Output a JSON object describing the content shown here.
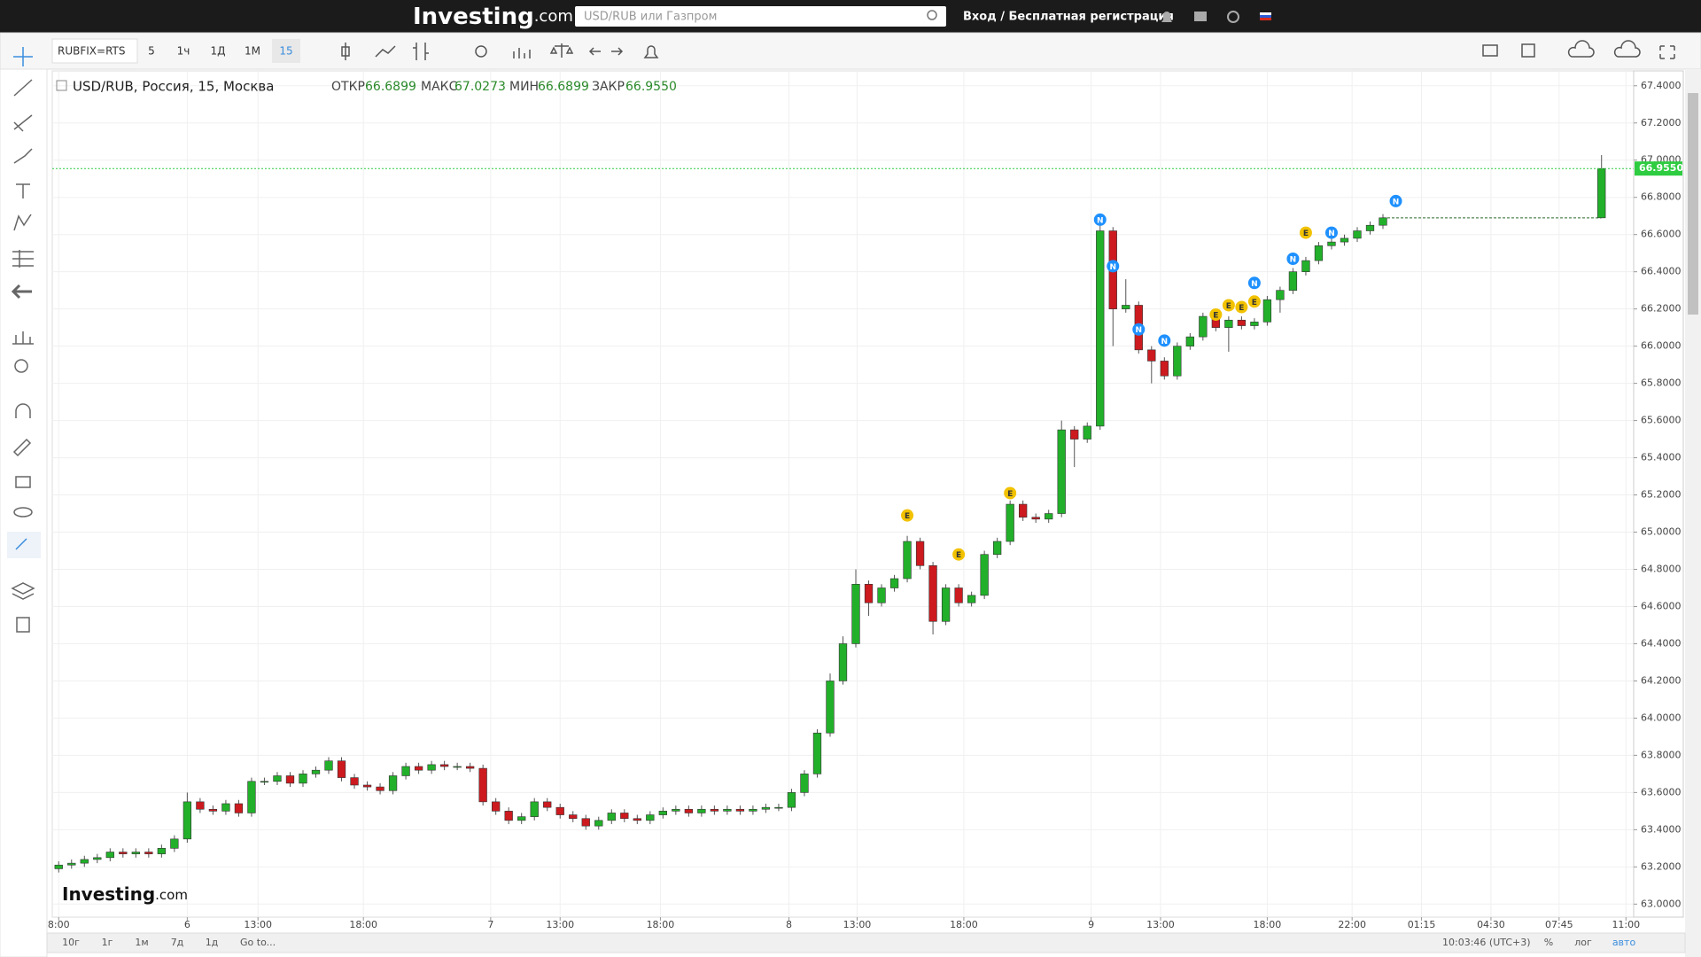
{
  "header": {
    "logo": "Investing",
    "logo_suffix": ".com",
    "search_placeholder": "USD/RUB или Газпром",
    "login": "Вход / Бесплатная регистрация"
  },
  "toolbar": {
    "symbol": "RUBFIX=RTS",
    "intervals": [
      "5",
      "1ч",
      "1Д",
      "1М",
      "15"
    ]
  },
  "legend": {
    "title": "USD/RUB, Россия, 15, Москва",
    "ohlc": [
      {
        "label": "ОТКР",
        "value": "66.6899"
      },
      {
        "label": "МАКС",
        "value": "67.0273"
      },
      {
        "label": "МИН",
        "value": "66.6899"
      },
      {
        "label": "ЗАКР",
        "value": "66.9550"
      }
    ]
  },
  "bottom_bar": {
    "ranges": [
      "10г",
      "1г",
      "1м",
      "7д",
      "1д"
    ],
    "goto": "Go to...",
    "clock": "10:03:46 (UTC+3)",
    "options": [
      "%",
      "лог",
      "авто"
    ]
  },
  "chart_data": {
    "type": "candlestick",
    "watermark": [
      "Investing",
      ".com"
    ],
    "up_color": "#22b02a",
    "down_color": "#cc1a1f",
    "xlim": [
      -0.5,
      122.5
    ],
    "ylim": [
      62.93,
      67.48
    ],
    "grid": true,
    "xticks": [
      {
        "value": 0,
        "label": "8:00"
      },
      {
        "value": 10,
        "label": "6"
      },
      {
        "value": 15.5,
        "label": "13:00"
      },
      {
        "value": 23.7,
        "label": "18:00"
      },
      {
        "value": 33.6,
        "label": "7"
      },
      {
        "value": 39,
        "label": "13:00"
      },
      {
        "value": 46.8,
        "label": "18:00"
      },
      {
        "value": 56.8,
        "label": "8"
      },
      {
        "value": 62.1,
        "label": "13:00"
      },
      {
        "value": 70.4,
        "label": "18:00"
      },
      {
        "value": 80.3,
        "label": "9"
      },
      {
        "value": 85.7,
        "label": "13:00"
      },
      {
        "value": 94,
        "label": "18:00"
      },
      {
        "value": 100.6,
        "label": "22:00"
      },
      {
        "value": 106,
        "label": "01:15"
      },
      {
        "value": 111.4,
        "label": "04:30"
      },
      {
        "value": 116.7,
        "label": "07:45"
      },
      {
        "value": 121.9,
        "label": "11:00"
      }
    ],
    "yticks": [
      {
        "value": 63.0,
        "label": "63.0000"
      },
      {
        "value": 63.2,
        "label": "63.2000"
      },
      {
        "value": 63.4,
        "label": "63.4000"
      },
      {
        "value": 63.6,
        "label": "63.6000"
      },
      {
        "value": 63.8,
        "label": "63.8000"
      },
      {
        "value": 64.0,
        "label": "64.0000"
      },
      {
        "value": 64.2,
        "label": "64.2000"
      },
      {
        "value": 64.4,
        "label": "64.4000"
      },
      {
        "value": 64.6,
        "label": "64.6000"
      },
      {
        "value": 64.8,
        "label": "64.8000"
      },
      {
        "value": 65.0,
        "label": "65.0000"
      },
      {
        "value": 65.2,
        "label": "65.2000"
      },
      {
        "value": 65.4,
        "label": "65.4000"
      },
      {
        "value": 65.6,
        "label": "65.6000"
      },
      {
        "value": 65.8,
        "label": "65.8000"
      },
      {
        "value": 66.0,
        "label": "66.0000"
      },
      {
        "value": 66.2,
        "label": "66.2000"
      },
      {
        "value": 66.4,
        "label": "66.4000"
      },
      {
        "value": 66.6,
        "label": "66.6000"
      },
      {
        "value": 66.8,
        "label": "66.8000"
      },
      {
        "value": 67.0,
        "label": "67.0000"
      },
      {
        "value": 67.2,
        "label": "67.2000"
      },
      {
        "value": 67.4,
        "label": "67.4000"
      }
    ],
    "last_price": {
      "value": 66.955,
      "label": "66.9550"
    },
    "x": [
      0,
      1,
      2,
      3,
      4,
      5,
      6,
      7,
      8,
      9,
      10,
      11,
      12,
      13,
      14,
      15,
      16,
      17,
      18,
      19,
      20,
      21,
      22,
      23,
      24,
      25,
      26,
      27,
      28,
      29,
      30,
      31,
      32,
      33,
      34,
      35,
      36,
      37,
      38,
      39,
      40,
      41,
      42,
      43,
      44,
      45,
      46,
      47,
      48,
      49,
      50,
      51,
      52,
      53,
      54,
      55,
      56,
      57,
      58,
      59,
      60,
      61,
      62,
      63,
      64,
      65,
      66,
      67,
      68,
      69,
      70,
      71,
      72,
      73,
      74,
      75,
      76,
      77,
      78,
      79,
      80,
      81,
      82,
      83,
      84,
      85,
      86,
      87,
      88,
      89,
      90,
      91,
      92,
      93,
      94,
      95,
      96,
      97,
      98,
      99,
      100,
      101,
      102,
      103,
      120
    ],
    "series": [
      {
        "open": [
          63.19,
          63.21,
          63.22,
          63.24,
          63.25,
          63.28,
          63.27,
          63.28,
          63.27,
          63.3,
          63.35,
          63.55,
          63.51,
          63.5,
          63.54,
          63.49,
          63.66,
          63.66,
          63.69,
          63.65,
          63.7,
          63.72,
          63.77,
          63.68,
          63.64,
          63.63,
          63.61,
          63.69,
          63.74,
          63.72,
          63.75,
          63.74,
          63.74,
          63.73,
          63.55,
          63.5,
          63.45,
          63.47,
          63.55,
          63.52,
          63.48,
          63.46,
          63.42,
          63.45,
          63.49,
          63.46,
          63.45,
          63.48,
          63.5,
          63.51,
          63.49,
          63.51,
          63.5,
          63.51,
          63.5,
          63.51,
          63.52,
          63.52,
          63.6,
          63.7,
          63.92,
          64.2,
          64.4,
          64.72,
          64.62,
          64.7,
          64.75,
          64.95,
          64.82,
          64.52,
          64.7,
          64.62,
          64.66,
          64.88,
          64.95,
          65.15,
          65.08,
          65.07,
          65.1,
          65.55,
          65.5,
          65.57,
          66.62,
          66.2,
          66.22,
          65.98,
          65.92,
          65.84,
          66.0,
          66.05,
          66.16,
          66.1,
          66.14,
          66.11,
          66.13,
          66.25,
          66.3,
          66.4,
          66.46,
          66.54,
          66.56,
          66.58,
          66.62,
          66.65,
          66.6899
        ],
        "high": [
          63.23,
          63.24,
          63.26,
          63.27,
          63.3,
          63.3,
          63.3,
          63.3,
          63.32,
          63.37,
          63.6,
          63.57,
          63.53,
          63.56,
          63.56,
          63.68,
          63.68,
          63.71,
          63.71,
          63.72,
          63.74,
          63.79,
          63.79,
          63.7,
          63.66,
          63.65,
          63.71,
          63.76,
          63.76,
          63.77,
          63.77,
          63.76,
          63.76,
          63.75,
          63.57,
          63.52,
          63.49,
          63.57,
          63.57,
          63.54,
          63.5,
          63.48,
          63.47,
          63.51,
          63.51,
          63.48,
          63.5,
          63.52,
          63.53,
          63.53,
          63.53,
          63.53,
          63.53,
          63.53,
          63.53,
          63.54,
          63.54,
          63.62,
          63.72,
          63.94,
          64.24,
          64.44,
          64.8,
          64.74,
          64.72,
          64.77,
          64.98,
          64.97,
          64.84,
          64.72,
          64.72,
          64.68,
          64.9,
          64.97,
          65.17,
          65.17,
          65.1,
          65.12,
          65.6,
          65.57,
          65.59,
          66.66,
          66.64,
          66.36,
          66.24,
          66.0,
          65.94,
          66.02,
          66.07,
          66.18,
          66.18,
          66.16,
          66.16,
          66.15,
          66.27,
          66.32,
          66.42,
          66.48,
          66.56,
          66.58,
          66.6,
          66.64,
          66.67,
          66.71,
          67.0273
        ],
        "low": [
          63.17,
          63.19,
          63.2,
          63.22,
          63.23,
          63.25,
          63.25,
          63.25,
          63.25,
          63.28,
          63.33,
          63.49,
          63.48,
          63.48,
          63.47,
          63.47,
          63.64,
          63.64,
          63.63,
          63.63,
          63.68,
          63.7,
          63.66,
          63.62,
          63.61,
          63.59,
          63.59,
          63.67,
          63.7,
          63.7,
          63.72,
          63.72,
          63.71,
          63.53,
          63.48,
          63.43,
          63.43,
          63.45,
          63.5,
          63.46,
          63.44,
          63.4,
          63.4,
          63.43,
          63.44,
          63.43,
          63.43,
          63.46,
          63.48,
          63.47,
          63.47,
          63.48,
          63.48,
          63.48,
          63.48,
          63.49,
          63.5,
          63.5,
          63.58,
          63.68,
          63.9,
          64.18,
          64.38,
          64.55,
          64.6,
          64.68,
          64.73,
          64.8,
          64.45,
          64.5,
          64.6,
          64.6,
          64.64,
          64.86,
          64.93,
          65.06,
          65.05,
          65.05,
          65.08,
          65.35,
          65.48,
          65.55,
          66.0,
          66.18,
          65.96,
          65.8,
          65.82,
          65.82,
          65.98,
          66.03,
          66.08,
          65.97,
          66.09,
          66.09,
          66.11,
          66.18,
          66.28,
          66.38,
          66.44,
          66.52,
          66.54,
          66.56,
          66.6,
          66.63,
          66.6899
        ],
        "close": [
          63.21,
          63.22,
          63.24,
          63.25,
          63.28,
          63.27,
          63.28,
          63.27,
          63.3,
          63.35,
          63.55,
          63.51,
          63.5,
          63.54,
          63.49,
          63.66,
          63.66,
          63.69,
          63.65,
          63.7,
          63.72,
          63.77,
          63.68,
          63.64,
          63.63,
          63.61,
          63.69,
          63.74,
          63.72,
          63.75,
          63.74,
          63.74,
          63.73,
          63.55,
          63.5,
          63.45,
          63.47,
          63.55,
          63.52,
          63.48,
          63.46,
          63.42,
          63.45,
          63.49,
          63.46,
          63.45,
          63.48,
          63.5,
          63.51,
          63.49,
          63.51,
          63.5,
          63.51,
          63.5,
          63.51,
          63.52,
          63.52,
          63.6,
          63.7,
          63.92,
          64.2,
          64.4,
          64.72,
          64.62,
          64.7,
          64.75,
          64.95,
          64.82,
          64.52,
          64.7,
          64.62,
          64.66,
          64.88,
          64.95,
          65.15,
          65.08,
          65.07,
          65.1,
          65.55,
          65.5,
          65.57,
          66.62,
          66.2,
          66.22,
          65.98,
          65.92,
          65.84,
          66.0,
          66.05,
          66.16,
          66.1,
          66.14,
          66.11,
          66.13,
          66.25,
          66.3,
          66.4,
          66.46,
          66.54,
          66.56,
          66.58,
          66.62,
          66.65,
          66.69,
          66.955
        ]
      }
    ],
    "events": [
      {
        "x": 66,
        "y": 65.09,
        "label": "E"
      },
      {
        "x": 70,
        "y": 64.88,
        "label": "E"
      },
      {
        "x": 74,
        "y": 65.21,
        "label": "E"
      },
      {
        "x": 81,
        "y": 66.68,
        "label": "N"
      },
      {
        "x": 82,
        "y": 66.43,
        "label": "N"
      },
      {
        "x": 84,
        "y": 66.09,
        "label": "N"
      },
      {
        "x": 86,
        "y": 66.03,
        "label": "N"
      },
      {
        "x": 90,
        "y": 66.17,
        "label": "E"
      },
      {
        "x": 91,
        "y": 66.22,
        "label": "E"
      },
      {
        "x": 92,
        "y": 66.21,
        "label": "E"
      },
      {
        "x": 93,
        "y": 66.24,
        "label": "E"
      },
      {
        "x": 93,
        "y": 66.34,
        "label": "N"
      },
      {
        "x": 96,
        "y": 66.47,
        "label": "N"
      },
      {
        "x": 97,
        "y": 66.61,
        "label": "E"
      },
      {
        "x": 99,
        "y": 66.61,
        "label": "N"
      },
      {
        "x": 104,
        "y": 66.78,
        "label": "N"
      }
    ]
  }
}
